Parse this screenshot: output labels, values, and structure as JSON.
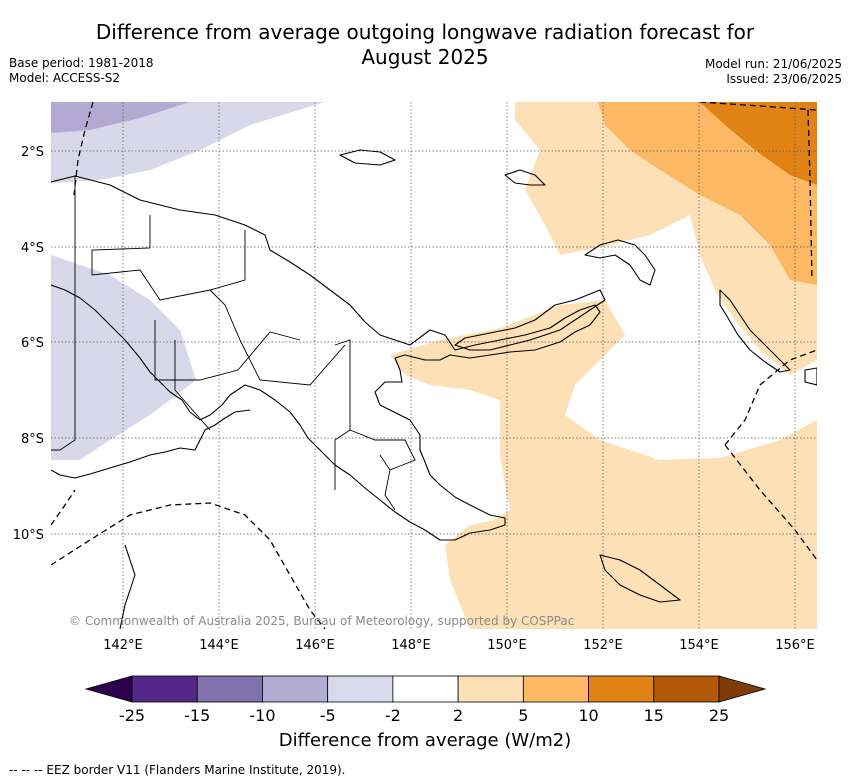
{
  "header": {
    "title_line1": "Difference from average outgoing longwave radiation forecast for",
    "title_line2": "August 2025",
    "base_period": "Base period: 1981-2018",
    "model": "Model: ACCESS-S2",
    "model_run": "Model run: 21/06/2025",
    "issued": "Issued: 23/06/2025"
  },
  "map": {
    "lat_labels": [
      "2°S",
      "4°S",
      "6°S",
      "8°S",
      "10°S"
    ],
    "lon_labels": [
      "142°E",
      "144°E",
      "146°E",
      "148°E",
      "150°E",
      "152°E",
      "154°E",
      "156°E"
    ],
    "copyright": "© Commonwealth of Australia 2025, Bureau of Meteorology, supported by COSPPac",
    "colors": {
      "land_outline": "#000000",
      "anomaly_neg_5_to_neg_2": "#d8d8ea",
      "anomaly_neg_10_to_neg_5": "#b2aad2",
      "anomaly_2_to_5": "#fde0b6",
      "anomaly_5_to_10": "#fdb863",
      "anomaly_10_to_15": "#e08214"
    }
  },
  "colorbar": {
    "title": "Difference from average (W/m2)",
    "ticks": [
      "-25",
      "-15",
      "-10",
      "-5",
      "-2",
      "2",
      "5",
      "10",
      "15",
      "25"
    ],
    "colors": [
      "#2d004b",
      "#542788",
      "#8073ac",
      "#b2abd2",
      "#d8daeb",
      "#ffffff",
      "#fee0b6",
      "#fdb863",
      "#e08214",
      "#b35806",
      "#7f3b08"
    ]
  },
  "footnote": "--  --  -- EEZ border V11 (Flanders Marine Institute, 2019)."
}
